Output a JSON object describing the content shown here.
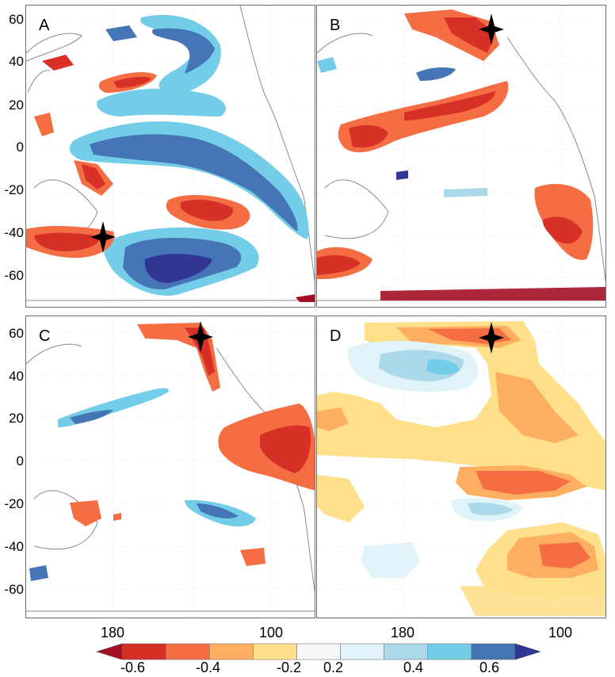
{
  "panels": [
    {
      "label": "A",
      "star": "southwest"
    },
    {
      "label": "B",
      "star": "north"
    },
    {
      "label": "C",
      "star": "north"
    },
    {
      "label": "D",
      "star": "north"
    }
  ],
  "lat_ticks_top": [
    "60",
    "40",
    "20",
    "0",
    "-20",
    "-40",
    "-60"
  ],
  "lat_ticks_bottom": [
    "60",
    "40",
    "20",
    "0",
    "-20",
    "-40",
    "-60"
  ],
  "lon_ticks_left": [
    "180",
    "100"
  ],
  "lon_ticks_right": [
    "180",
    "100"
  ],
  "colorbar": {
    "labels": [
      "-0.6",
      "-0.4",
      "-0.2",
      "0.2",
      "0.4",
      "0.6"
    ],
    "colors": [
      "#a50f26",
      "#d73127",
      "#f46d43",
      "#fdae61",
      "#fee08b",
      "#f7f7f7",
      "#e0f3f8",
      "#abd9e9",
      "#74cde8",
      "#4575b4",
      "#313695"
    ]
  }
}
